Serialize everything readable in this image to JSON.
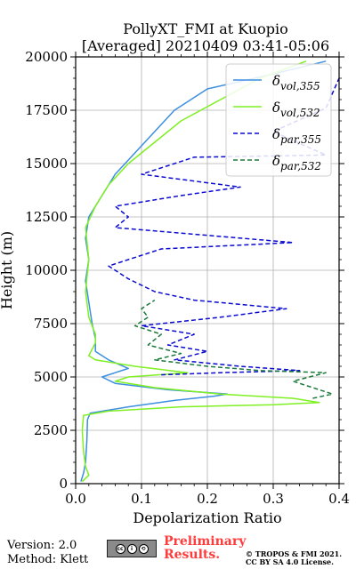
{
  "chart_data": {
    "type": "line",
    "title": "PollyXT_FMI at Kuopio",
    "subtitle": "[Averaged] 20210409 03:41-05:06",
    "xlabel": "Depolarization Ratio",
    "ylabel": "Height (m)",
    "xlim": [
      0,
      0.4
    ],
    "ylim": [
      0,
      20000
    ],
    "xticks": [
      "0.0",
      "0.1",
      "0.2",
      "0.3",
      "0.4"
    ],
    "yticks": [
      "0",
      "2500",
      "5000",
      "7500",
      "10000",
      "12500",
      "15000",
      "17500",
      "20000"
    ],
    "grid": true,
    "legend_position": "top-right",
    "series": [
      {
        "name": "δvol,355",
        "legend_base": "δ",
        "legend_sub": "vol,355",
        "color": "#3d8fe0",
        "dash": "solid",
        "points": [
          [
            0.008,
            100
          ],
          [
            0.012,
            500
          ],
          [
            0.015,
            1000
          ],
          [
            0.017,
            2000
          ],
          [
            0.018,
            3000
          ],
          [
            0.022,
            3300
          ],
          [
            0.08,
            3600
          ],
          [
            0.15,
            3900
          ],
          [
            0.21,
            4100
          ],
          [
            0.23,
            4200
          ],
          [
            0.14,
            4400
          ],
          [
            0.06,
            4700
          ],
          [
            0.04,
            5000
          ],
          [
            0.06,
            5200
          ],
          [
            0.08,
            5400
          ],
          [
            0.05,
            5800
          ],
          [
            0.03,
            6200
          ],
          [
            0.03,
            6800
          ],
          [
            0.025,
            7500
          ],
          [
            0.02,
            8500
          ],
          [
            0.015,
            9500
          ],
          [
            0.02,
            10500
          ],
          [
            0.015,
            11500
          ],
          [
            0.02,
            12500
          ],
          [
            0.04,
            13500
          ],
          [
            0.06,
            14500
          ],
          [
            0.09,
            15500
          ],
          [
            0.12,
            16500
          ],
          [
            0.15,
            17500
          ],
          [
            0.2,
            18500
          ],
          [
            0.3,
            19200
          ],
          [
            0.38,
            19800
          ]
        ]
      },
      {
        "name": "δvol,532",
        "legend_base": "δ",
        "legend_sub": "vol,532",
        "color": "#7ff022",
        "dash": "solid",
        "points": [
          [
            0.01,
            100
          ],
          [
            0.02,
            400
          ],
          [
            0.015,
            800
          ],
          [
            0.012,
            1500
          ],
          [
            0.01,
            2500
          ],
          [
            0.012,
            3200
          ],
          [
            0.05,
            3400
          ],
          [
            0.16,
            3600
          ],
          [
            0.3,
            3700
          ],
          [
            0.37,
            3800
          ],
          [
            0.33,
            4000
          ],
          [
            0.22,
            4200
          ],
          [
            0.12,
            4500
          ],
          [
            0.06,
            4800
          ],
          [
            0.08,
            5000
          ],
          [
            0.17,
            5200
          ],
          [
            0.09,
            5500
          ],
          [
            0.03,
            5800
          ],
          [
            0.02,
            6000
          ],
          [
            0.03,
            6600
          ],
          [
            0.03,
            7000
          ],
          [
            0.02,
            7800
          ],
          [
            0.015,
            9000
          ],
          [
            0.02,
            10500
          ],
          [
            0.015,
            12000
          ],
          [
            0.03,
            13000
          ],
          [
            0.05,
            14000
          ],
          [
            0.08,
            15000
          ],
          [
            0.12,
            16000
          ],
          [
            0.16,
            17000
          ],
          [
            0.22,
            18000
          ],
          [
            0.28,
            19000
          ],
          [
            0.35,
            19800
          ]
        ]
      },
      {
        "name": "δpar,355",
        "legend_base": "δ",
        "legend_sub": "par,355",
        "color": "#0a0ad0",
        "dash": "dashed",
        "points": [
          [
            0.13,
            5100
          ],
          [
            0.22,
            5200
          ],
          [
            0.34,
            5300
          ],
          [
            0.25,
            5500
          ],
          [
            0.15,
            5800
          ],
          [
            0.2,
            6200
          ],
          [
            0.14,
            6500
          ],
          [
            0.18,
            7000
          ],
          [
            0.1,
            7400
          ],
          [
            0.22,
            7800
          ],
          [
            0.32,
            8200
          ],
          [
            0.18,
            8600
          ],
          [
            0.12,
            9000
          ],
          [
            0.08,
            9600
          ],
          [
            0.05,
            10200
          ],
          [
            0.13,
            11000
          ],
          [
            0.33,
            11300
          ],
          [
            0.06,
            12000
          ],
          [
            0.08,
            12500
          ],
          [
            0.06,
            13000
          ],
          [
            0.16,
            13500
          ],
          [
            0.25,
            13900
          ],
          [
            0.1,
            14500
          ],
          [
            0.18,
            15300
          ],
          [
            0.38,
            15400
          ],
          [
            0.3,
            16500
          ],
          [
            0.38,
            17600
          ],
          [
            0.4,
            19000
          ]
        ]
      },
      {
        "name": "δpar,532",
        "legend_base": "δ",
        "legend_sub": "par,532",
        "color": "#1d7a3a",
        "dash": "dashed",
        "points": [
          [
            0.36,
            4000
          ],
          [
            0.39,
            4200
          ],
          [
            0.36,
            4500
          ],
          [
            0.33,
            4800
          ],
          [
            0.38,
            5200
          ],
          [
            0.28,
            5300
          ],
          [
            0.2,
            5500
          ],
          [
            0.12,
            5800
          ],
          [
            0.16,
            6100
          ],
          [
            0.11,
            6500
          ],
          [
            0.13,
            7000
          ],
          [
            0.09,
            7400
          ],
          [
            0.11,
            7800
          ],
          [
            0.1,
            8200
          ],
          [
            0.12,
            8600
          ]
        ]
      }
    ]
  },
  "footer": {
    "version": "Version: 2.0",
    "method": "Method: Klett",
    "license_badge_icons": [
      "cc-icon",
      "by-icon",
      "sa-icon"
    ],
    "preliminary_line1": "Preliminary",
    "preliminary_line2": "Results.",
    "copyright_line1": "© TROPOS & FMI 2021.",
    "copyright_line2": "CC BY SA 4.0 License.",
    "preliminary_color": "#ff3b3b"
  }
}
